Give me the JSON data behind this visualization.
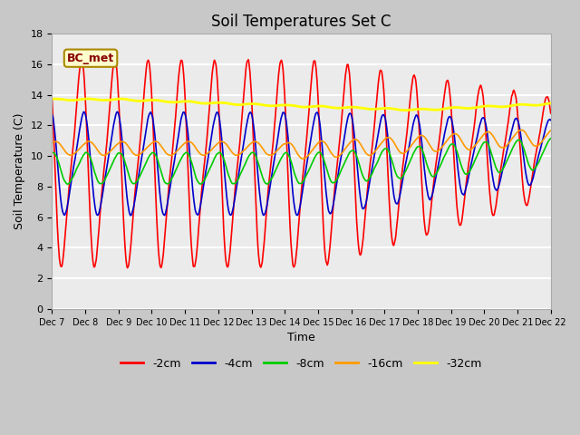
{
  "title": "Soil Temperatures Set C",
  "xlabel": "Time",
  "ylabel": "Soil Temperature (C)",
  "ylim": [
    0,
    18
  ],
  "xlim": [
    0,
    360
  ],
  "xtick_labels": [
    "Dec 7",
    "Dec 8",
    "Dec 9",
    "Dec 10",
    "Dec 11",
    "Dec 12",
    "Dec 13",
    "Dec 14",
    "Dec 15",
    "Dec 16",
    "Dec 17",
    "Dec 18",
    "Dec 19",
    "Dec 20",
    "Dec 21",
    "Dec 22"
  ],
  "ytick_labels": [
    "0",
    "2",
    "4",
    "6",
    "8",
    "10",
    "12",
    "14",
    "16",
    "18"
  ],
  "legend_labels": [
    "-2cm",
    "-4cm",
    "-8cm",
    "-16cm",
    "-32cm"
  ],
  "line_colors": [
    "#ff0000",
    "#0000cc",
    "#00cc00",
    "#ff9900",
    "#ffff00"
  ],
  "annotation_text": "BC_met",
  "plot_bg_color": "#ebebeb",
  "fig_bg_color": "#c8c8c8",
  "title_fontsize": 12,
  "label_fontsize": 9
}
